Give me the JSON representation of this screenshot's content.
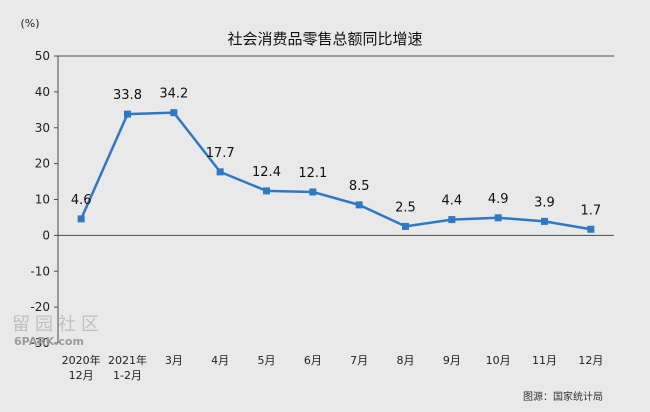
{
  "chart_data": {
    "type": "line",
    "title": "社会消费品零售总额同比增速",
    "unit_label": "(%)",
    "categories": [
      [
        "2020年",
        "12月"
      ],
      [
        "2021年",
        "1-2月"
      ],
      [
        "3月"
      ],
      [
        "4月"
      ],
      [
        "5月"
      ],
      [
        "6月"
      ],
      [
        "7月"
      ],
      [
        "8月"
      ],
      [
        "9月"
      ],
      [
        "10月"
      ],
      [
        "11月"
      ],
      [
        "12月"
      ]
    ],
    "values": [
      4.6,
      33.8,
      34.2,
      17.7,
      12.4,
      12.1,
      8.5,
      2.5,
      4.4,
      4.9,
      3.9,
      1.7
    ],
    "ylim": [
      -30,
      50
    ],
    "yticks": [
      50,
      40,
      30,
      20,
      10,
      0,
      -10,
      -20,
      -30
    ],
    "grid": false,
    "line_color": "#2e78c4",
    "marker_color": "#2e78c4",
    "axis_color": "#4d4d4d",
    "source": "图源：国家统计局"
  },
  "watermark": {
    "chars": [
      "留",
      "园",
      "社",
      "区"
    ],
    "sub": "6PARK.com"
  }
}
